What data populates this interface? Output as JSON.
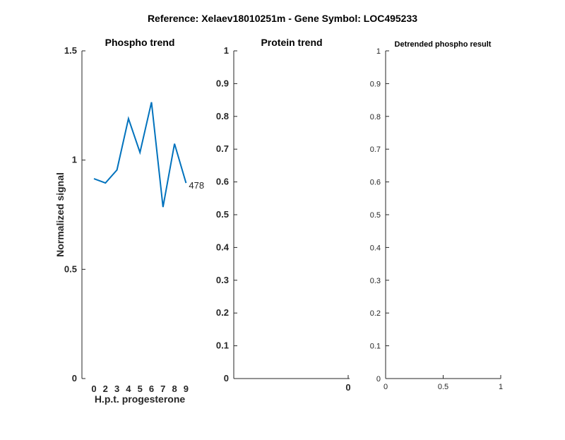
{
  "figure": {
    "suptitle": "Reference:  Xelaev18010251m - Gene Symbol:  LOC495233"
  },
  "chart_data": [
    {
      "type": "line",
      "title": "Phospho trend",
      "xlabel": "H.p.t. progesterone",
      "ylabel": "Normalized signal",
      "categories": [
        "0",
        "2",
        "3",
        "4",
        "5",
        "6",
        "7",
        "8",
        "9"
      ],
      "series": [
        {
          "values": [
            0.915,
            0.895,
            0.955,
            1.19,
            1.035,
            1.265,
            0.785,
            1.075,
            0.895
          ]
        }
      ],
      "ylim": [
        0,
        1.5
      ],
      "yticks": [
        "0",
        "0.5",
        "1",
        "1.5"
      ],
      "annotation": "478",
      "line_color": "#0072BD",
      "grid": false
    },
    {
      "type": "line",
      "title": "Protein trend",
      "xlabel": "",
      "ylabel": "",
      "series": [],
      "ylim": [
        0,
        1
      ],
      "yticks": [
        "0",
        "0.1",
        "0.2",
        "0.3",
        "0.4",
        "0.5",
        "0.6",
        "0.7",
        "0.8",
        "0.9",
        "1"
      ],
      "xticks": [
        "0"
      ],
      "grid": false
    },
    {
      "type": "line",
      "title": "Detrended phospho result",
      "xlabel": "",
      "ylabel": "",
      "series": [],
      "xlim": [
        0,
        1
      ],
      "ylim": [
        0,
        1
      ],
      "yticks": [
        "0",
        "0.1",
        "0.2",
        "0.3",
        "0.4",
        "0.5",
        "0.6",
        "0.7",
        "0.8",
        "0.9",
        "1"
      ],
      "xticks": [
        "0",
        "0.5",
        "1"
      ],
      "grid": false
    }
  ]
}
